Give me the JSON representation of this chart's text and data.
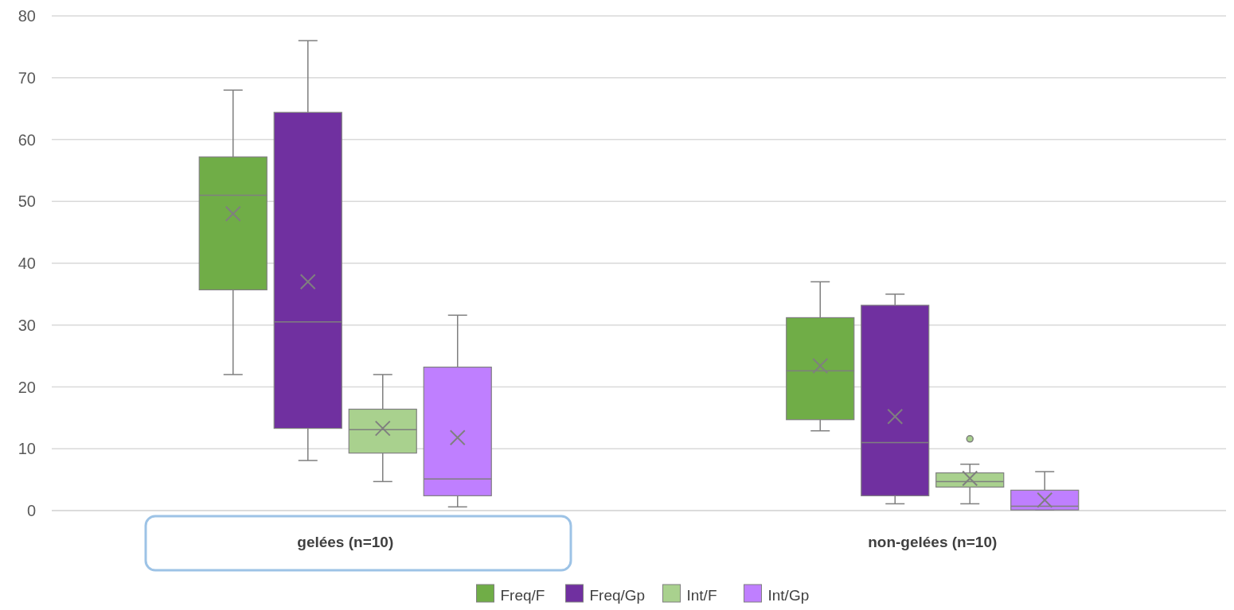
{
  "chart_data": {
    "type": "box",
    "categories": [
      "gelées (n=10)",
      "non-gelées  (n=10)"
    ],
    "ylim": [
      0,
      80
    ],
    "yticks": [
      0,
      10,
      20,
      30,
      40,
      50,
      60,
      70,
      80
    ],
    "grid": "y",
    "legend": "bottom",
    "series": [
      {
        "name": "Freq/F",
        "color": "#70ad47",
        "boxes": [
          {
            "low": 22,
            "q1": 35.7,
            "median": 51,
            "q3": 57.2,
            "high": 68,
            "mean": 48
          },
          {
            "low": 12.9,
            "q1": 14.7,
            "median": 22.6,
            "q3": 31.2,
            "high": 37,
            "mean": 23.4
          }
        ]
      },
      {
        "name": "Freq/Gp",
        "color": "#7030a0",
        "boxes": [
          {
            "low": 8.1,
            "q1": 13.3,
            "median": 30.5,
            "q3": 64.4,
            "high": 76,
            "mean": 37
          },
          {
            "low": 1.1,
            "q1": 2.4,
            "median": 11,
            "q3": 33.2,
            "high": 35,
            "mean": 15.2
          }
        ]
      },
      {
        "name": "Int/F",
        "color": "#a9d18e",
        "boxes": [
          {
            "low": 4.7,
            "q1": 9.3,
            "median": 13.1,
            "q3": 16.4,
            "high": 22,
            "mean": 13.3
          },
          {
            "low": 1.1,
            "q1": 3.8,
            "median": 4.7,
            "q3": 6.1,
            "high": 7.5,
            "mean": 5.2,
            "outliers": [
              11.6
            ]
          }
        ]
      },
      {
        "name": "Int/Gp",
        "color": "#bf7fff",
        "boxes": [
          {
            "low": 0.6,
            "q1": 2.4,
            "median": 5.1,
            "q3": 23.2,
            "high": 31.6,
            "mean": 11.8
          },
          {
            "low": 0.1,
            "q1": 0.1,
            "median": 0.7,
            "q3": 3.3,
            "high": 6.3,
            "mean": 1.7
          }
        ]
      }
    ]
  }
}
